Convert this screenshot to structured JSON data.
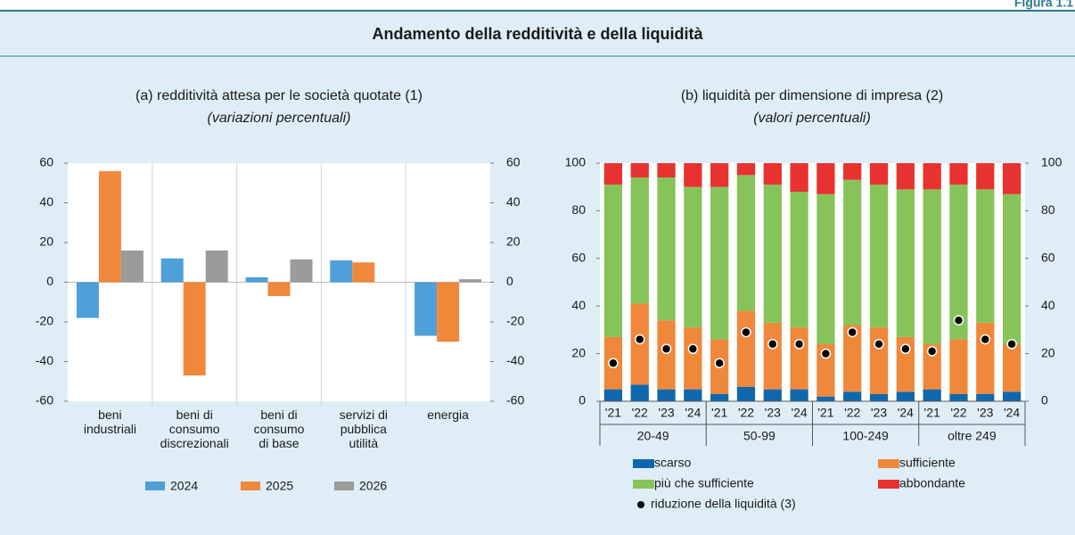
{
  "figure_label": "Figura 1.1",
  "title": "Andamento della redditività e della liquidità",
  "chart_data": [
    {
      "type": "bar",
      "title": "(a) redditività attesa per le società quotate (1)",
      "subtitle": "(variazioni percentuali)",
      "categories": [
        [
          "beni",
          "industriali"
        ],
        [
          "beni di",
          "consumo",
          "discrezionali"
        ],
        [
          "beni di",
          "consumo",
          "di base"
        ],
        [
          "servizi di",
          "pubblica",
          "utilità"
        ],
        [
          "energia"
        ]
      ],
      "series": [
        {
          "name": "2024",
          "color": "#4f9fd9",
          "values": [
            -18,
            12,
            2.5,
            11,
            -27
          ]
        },
        {
          "name": "2025",
          "color": "#f0883c",
          "values": [
            56,
            -47,
            -7,
            10,
            -30
          ]
        },
        {
          "name": "2026",
          "color": "#9b9b9b",
          "values": [
            16,
            16,
            11.5,
            null,
            1.5
          ]
        }
      ],
      "ylim": [
        -60,
        60
      ],
      "yticks": [
        -60,
        -40,
        -20,
        0,
        20,
        40,
        60
      ],
      "y2lim": [
        -60,
        60
      ],
      "y2ticks": [
        -60,
        -40,
        -20,
        0,
        20,
        40,
        60
      ],
      "grid": false
    },
    {
      "type": "stacked_bar",
      "title": "(b) liquidità per dimensione di impresa (2)",
      "subtitle": "(valori percentuali)",
      "categories": [
        "'21",
        "'22",
        "'23",
        "'24",
        "'21",
        "'22",
        "'23",
        "'24",
        "'21",
        "'22",
        "'23",
        "'24",
        "'21",
        "'22",
        "'23",
        "'24"
      ],
      "groups": [
        "20-49",
        "50-99",
        "100-249",
        "oltre 249"
      ],
      "series": [
        {
          "name": "scarso",
          "color": "#0f68ad",
          "values": [
            5,
            7,
            5,
            5,
            3,
            6,
            5,
            5,
            2,
            4,
            3,
            4,
            5,
            3,
            3,
            4
          ]
        },
        {
          "name": "sufficiente",
          "color": "#f0883c",
          "values": [
            22,
            34,
            29,
            26,
            23,
            32,
            28,
            26,
            22,
            28,
            28,
            23,
            19,
            23,
            30,
            20
          ]
        },
        {
          "name": "più che sufficiente",
          "color": "#86c45a",
          "values": [
            64,
            53,
            60,
            59,
            64,
            57,
            58,
            57,
            63,
            61,
            60,
            62,
            65,
            65,
            56,
            63
          ]
        },
        {
          "name": "abbondante",
          "color": "#e8322f",
          "values": [
            9,
            6,
            6,
            10,
            10,
            5,
            9,
            12,
            13,
            7,
            9,
            11,
            11,
            9,
            11,
            13
          ]
        }
      ],
      "points": {
        "name": "riduzione della liquidità (3)",
        "color": "#000000",
        "values": [
          16,
          26,
          22,
          22,
          16,
          29,
          24,
          24,
          20,
          29,
          24,
          22,
          21,
          34,
          26,
          24
        ]
      },
      "ylim": [
        0,
        100
      ],
      "yticks": [
        0,
        20,
        40,
        60,
        80,
        100
      ],
      "y2lim": [
        0,
        100
      ],
      "y2ticks": [
        0,
        20,
        40,
        60,
        80,
        100
      ],
      "grid": false
    }
  ]
}
